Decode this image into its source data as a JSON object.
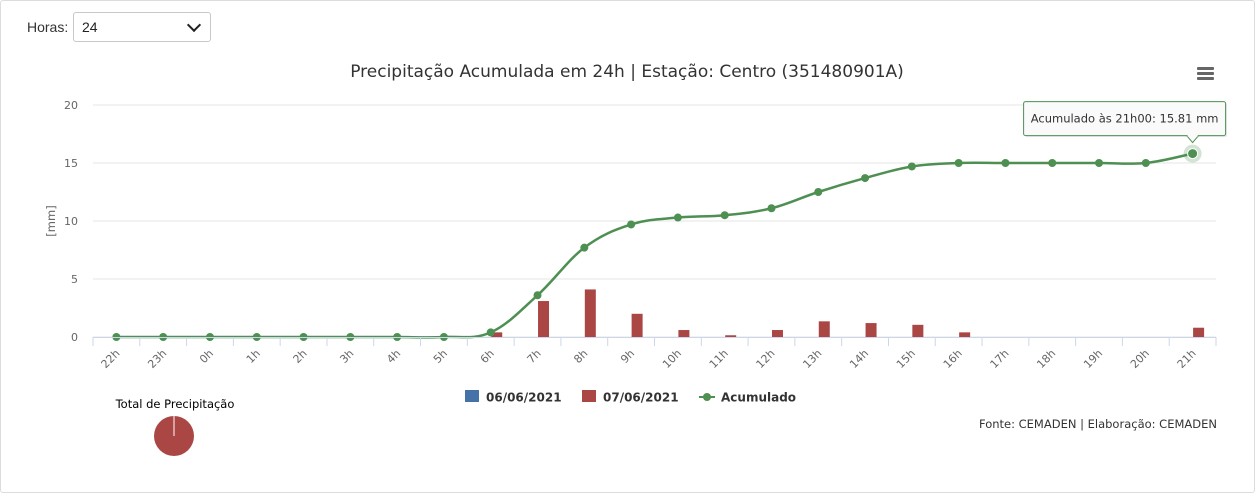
{
  "controls": {
    "hours_label": "Horas:",
    "hours_value": "24"
  },
  "chart_data": {
    "type": "bar",
    "title": "Precipitação Acumulada em 24h | Estação: Centro (351480901A)",
    "ylabel": "[mm]",
    "xlabel": "",
    "ylim": [
      0,
      20
    ],
    "yticks": [
      0,
      5,
      10,
      15,
      20
    ],
    "grid": true,
    "categories": [
      "22h",
      "23h",
      "0h",
      "1h",
      "2h",
      "3h",
      "4h",
      "5h",
      "6h",
      "7h",
      "8h",
      "9h",
      "10h",
      "11h",
      "12h",
      "13h",
      "14h",
      "15h",
      "16h",
      "17h",
      "18h",
      "19h",
      "20h",
      "21h"
    ],
    "series": [
      {
        "name": "06/06/2021",
        "type": "bar",
        "color": "#4572a7",
        "values": [
          0,
          0,
          0,
          0,
          0,
          0,
          0,
          0,
          0,
          0,
          0,
          0,
          0,
          0,
          0,
          0,
          0,
          0,
          0,
          0,
          0,
          0,
          0,
          0
        ]
      },
      {
        "name": "07/06/2021",
        "type": "bar",
        "color": "#aa4643",
        "values": [
          0,
          0,
          0,
          0,
          0,
          0,
          0,
          0,
          0.4,
          3.1,
          4.1,
          2.0,
          0.6,
          0.15,
          0.6,
          1.35,
          1.2,
          1.05,
          0.4,
          0,
          0,
          0,
          0,
          0.8
        ]
      },
      {
        "name": "Acumulado",
        "type": "line",
        "color": "#4e8f52",
        "values": [
          0,
          0,
          0,
          0,
          0,
          0,
          0,
          0,
          0.4,
          3.6,
          7.7,
          9.7,
          10.3,
          10.5,
          11.1,
          12.5,
          13.7,
          14.7,
          15.0,
          15.0,
          15.0,
          15.0,
          15.0,
          15.81
        ]
      }
    ],
    "legend_position": "bottom-center",
    "tooltip": "Acumulado às 21h00: 15.81 mm",
    "source": "Fonte: CEMADEN | Elaboração: CEMADEN",
    "pie": {
      "title": "Total de Precipitação",
      "color": "#aa4643"
    }
  }
}
